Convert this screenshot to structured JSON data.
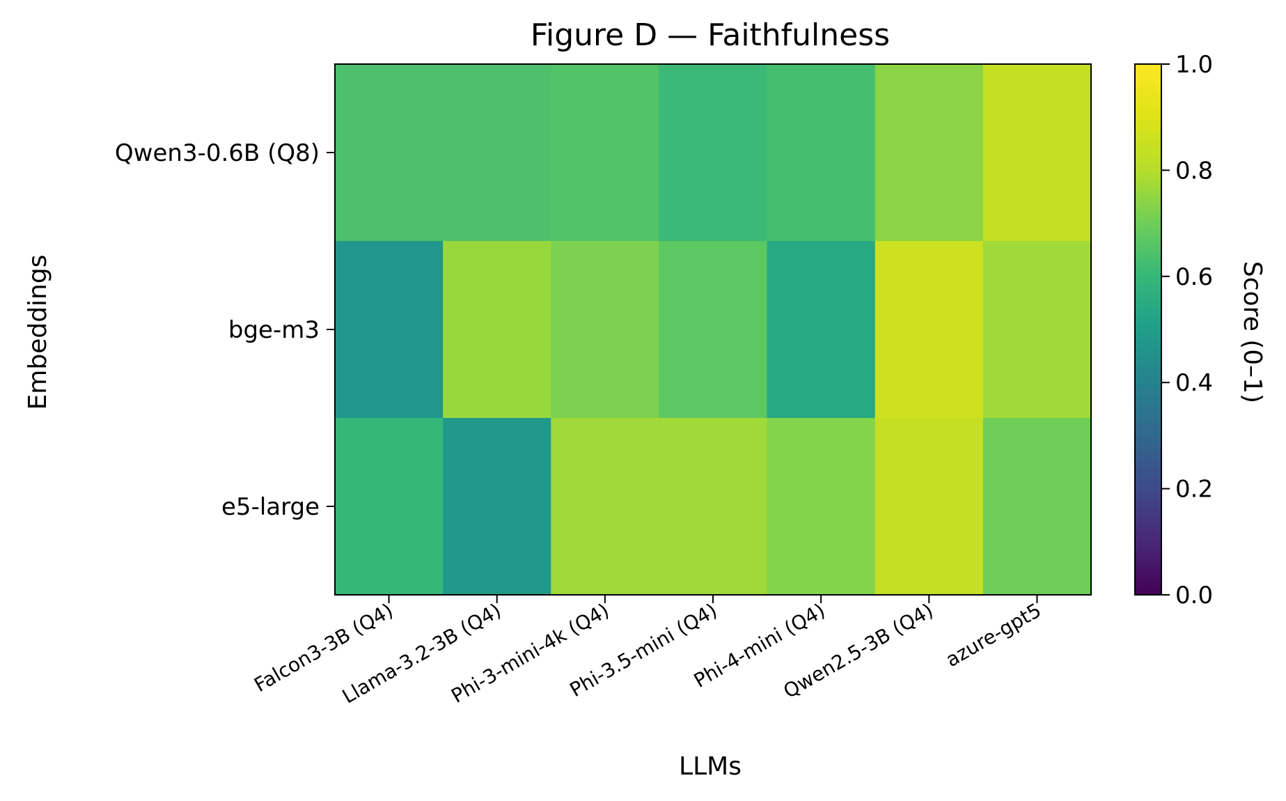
{
  "chart_data": {
    "type": "heatmap",
    "title": "Figure D — Faithfulness",
    "xlabel": "LLMs",
    "ylabel": "Embeddings",
    "x_categories": [
      "Falcon3-3B (Q4)",
      "Llama-3.2-3B (Q4)",
      "Phi-3-mini-4k (Q4)",
      "Phi-3.5-mini (Q4)",
      "Phi-4-mini (Q4)",
      "Qwen2.5-3B (Q4)",
      "azure-gpt5"
    ],
    "y_categories": [
      "Qwen3-0.6B (Q8)",
      "bge-m3",
      "e5-large"
    ],
    "values": [
      [
        0.64,
        0.64,
        0.65,
        0.61,
        0.63,
        0.74,
        0.84
      ],
      [
        0.47,
        0.76,
        0.72,
        0.67,
        0.54,
        0.86,
        0.77
      ],
      [
        0.6,
        0.48,
        0.77,
        0.77,
        0.73,
        0.84,
        0.7
      ]
    ],
    "colorbar": {
      "label": "Score (0–1)",
      "range": [
        0,
        1
      ],
      "ticks": [
        "0.0",
        "0.2",
        "0.4",
        "0.6",
        "0.8",
        "1.0"
      ],
      "colormap": "viridis"
    }
  }
}
